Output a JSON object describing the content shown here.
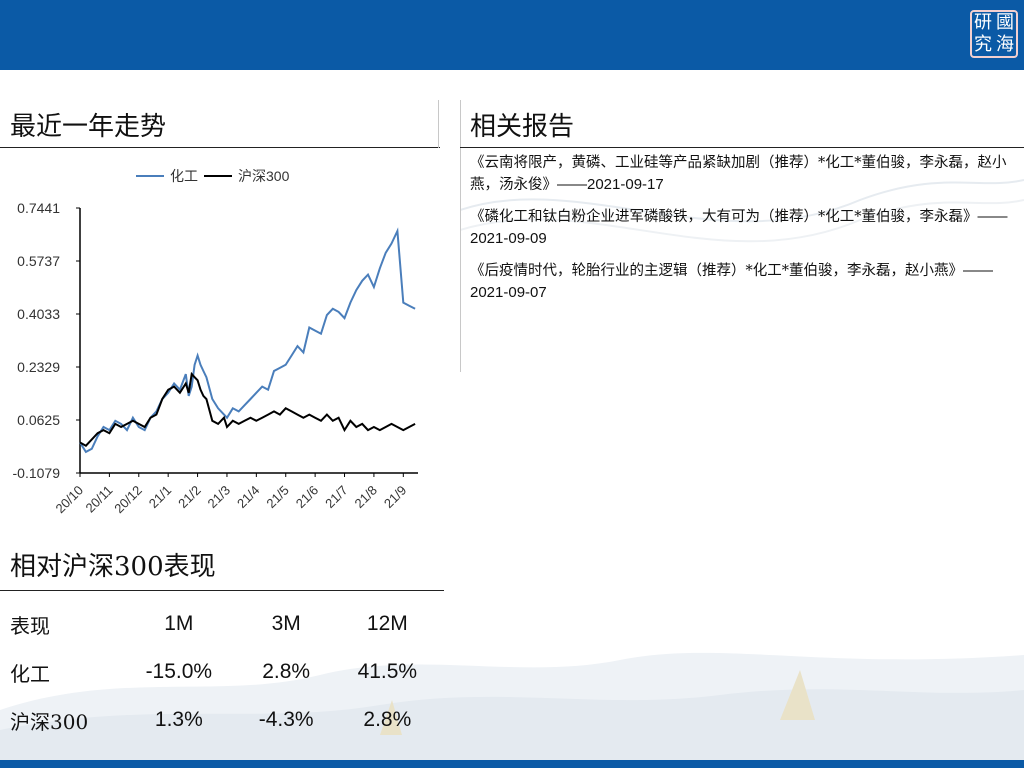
{
  "logo": {
    "chars": [
      "研",
      "國",
      "究",
      "海"
    ]
  },
  "trend_section": {
    "title": "最近一年走势"
  },
  "reports_section": {
    "title": "相关报告",
    "items": [
      {
        "text": "《云南将限产，黄磷、工业硅等产品紧缺加剧（推荐）*化工*董伯骏，李永磊，赵小燕，汤永俊》",
        "date": "——2021-09-17"
      },
      {
        "text": "《磷化工和钛白粉企业进军磷酸铁，大有可为（推荐）*化工*董伯骏，李永磊》",
        "date": "——2021-09-09"
      },
      {
        "text": "《后疫情时代，轮胎行业的主逻辑（推荐）*化工*董伯骏，李永磊，赵小燕》",
        "date": "——2021-09-07"
      }
    ]
  },
  "chart_data": {
    "type": "line",
    "title": "",
    "xlabel": "",
    "ylabel": "",
    "ylim": [
      -0.1079,
      0.7441
    ],
    "yticks": [
      "0.7441",
      "0.5737",
      "0.4033",
      "0.2329",
      "0.0625",
      "-0.1079"
    ],
    "xticks": [
      "20/10",
      "20/11",
      "20/12",
      "21/1",
      "21/2",
      "21/3",
      "21/4",
      "21/5",
      "21/6",
      "21/7",
      "21/8",
      "21/9"
    ],
    "legend_position": "top",
    "series": [
      {
        "name": "化工",
        "color": "#4a7ebb",
        "x": [
          0,
          0.2,
          0.4,
          0.6,
          0.8,
          1.0,
          1.2,
          1.4,
          1.6,
          1.8,
          2.0,
          2.2,
          2.4,
          2.6,
          2.8,
          3.0,
          3.2,
          3.4,
          3.6,
          3.7,
          3.8,
          3.9,
          4.0,
          4.1,
          4.2,
          4.3,
          4.5,
          4.7,
          4.9,
          5.0,
          5.2,
          5.4,
          5.6,
          5.8,
          6.0,
          6.2,
          6.4,
          6.6,
          6.8,
          7.0,
          7.2,
          7.4,
          7.6,
          7.8,
          8.0,
          8.2,
          8.4,
          8.6,
          8.8,
          9.0,
          9.2,
          9.4,
          9.6,
          9.8,
          10.0,
          10.2,
          10.4,
          10.6,
          10.8,
          11.0,
          11.2,
          11.4
        ],
        "values": [
          -0.01,
          -0.04,
          -0.03,
          0.01,
          0.04,
          0.03,
          0.06,
          0.05,
          0.03,
          0.07,
          0.04,
          0.03,
          0.07,
          0.09,
          0.13,
          0.15,
          0.18,
          0.16,
          0.21,
          0.14,
          0.17,
          0.24,
          0.27,
          0.24,
          0.22,
          0.2,
          0.13,
          0.1,
          0.08,
          0.07,
          0.1,
          0.09,
          0.11,
          0.13,
          0.15,
          0.17,
          0.16,
          0.22,
          0.23,
          0.24,
          0.27,
          0.3,
          0.28,
          0.36,
          0.35,
          0.34,
          0.4,
          0.42,
          0.41,
          0.39,
          0.44,
          0.48,
          0.51,
          0.53,
          0.49,
          0.55,
          0.6,
          0.63,
          0.67,
          0.44,
          0.43,
          0.42
        ]
      },
      {
        "name": "沪深300",
        "color": "#000000",
        "x": [
          0,
          0.2,
          0.4,
          0.6,
          0.8,
          1.0,
          1.2,
          1.4,
          1.6,
          1.8,
          2.0,
          2.2,
          2.4,
          2.6,
          2.8,
          3.0,
          3.2,
          3.4,
          3.6,
          3.7,
          3.8,
          3.9,
          4.0,
          4.1,
          4.2,
          4.3,
          4.5,
          4.7,
          4.9,
          5.0,
          5.2,
          5.4,
          5.6,
          5.8,
          6.0,
          6.2,
          6.4,
          6.6,
          6.8,
          7.0,
          7.2,
          7.4,
          7.6,
          7.8,
          8.0,
          8.2,
          8.4,
          8.6,
          8.8,
          9.0,
          9.2,
          9.4,
          9.6,
          9.8,
          10.0,
          10.2,
          10.4,
          10.6,
          10.8,
          11.0,
          11.2,
          11.4
        ],
        "values": [
          -0.01,
          -0.02,
          0.0,
          0.02,
          0.03,
          0.02,
          0.05,
          0.04,
          0.05,
          0.06,
          0.05,
          0.04,
          0.07,
          0.08,
          0.13,
          0.16,
          0.17,
          0.15,
          0.18,
          0.15,
          0.21,
          0.2,
          0.19,
          0.16,
          0.14,
          0.13,
          0.06,
          0.05,
          0.07,
          0.04,
          0.06,
          0.05,
          0.06,
          0.07,
          0.06,
          0.07,
          0.08,
          0.09,
          0.08,
          0.1,
          0.09,
          0.08,
          0.07,
          0.08,
          0.07,
          0.06,
          0.08,
          0.06,
          0.07,
          0.03,
          0.06,
          0.04,
          0.05,
          0.03,
          0.04,
          0.03,
          0.04,
          0.05,
          0.04,
          0.03,
          0.04,
          0.05
        ]
      }
    ]
  },
  "performance_section": {
    "title": "相对沪深300表现",
    "headers": [
      "表现",
      "1M",
      "3M",
      "12M"
    ],
    "rows": [
      [
        "化工",
        "-15.0%",
        "2.8%",
        "41.5%"
      ],
      [
        "沪深300",
        "1.3%",
        "-4.3%",
        "2.8%"
      ]
    ]
  }
}
